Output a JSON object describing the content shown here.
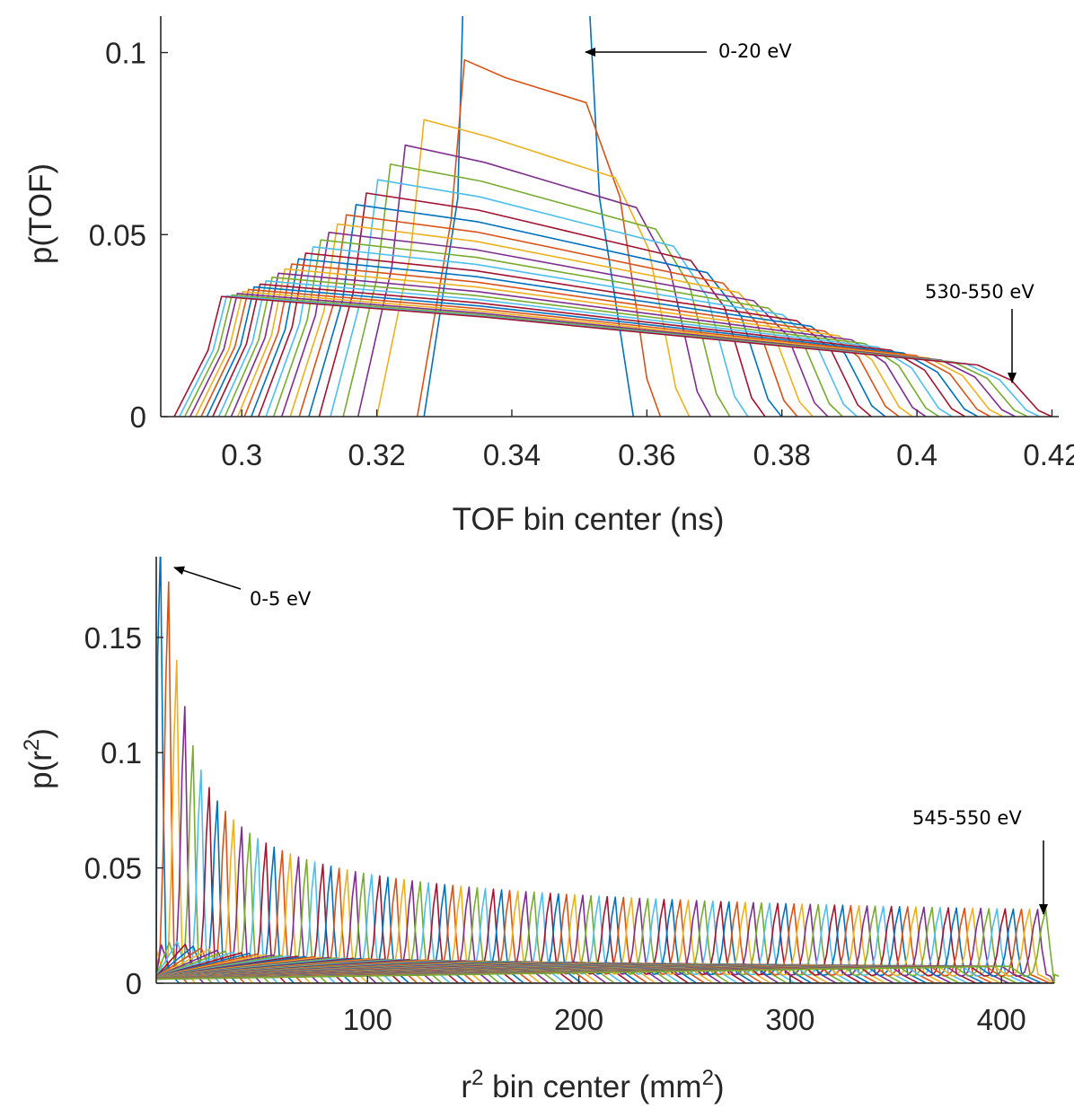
{
  "chart_data": [
    {
      "type": "line",
      "xlabel": "TOF bin center (ns)",
      "ylabel": "p(TOF)",
      "xlim": [
        0.288,
        0.421
      ],
      "ylim": [
        0,
        0.11
      ],
      "xticks": [
        "0.3",
        "0.32",
        "0.34",
        "0.36",
        "0.38",
        "0.4",
        "0.42"
      ],
      "yticks": [
        "0",
        "0.05",
        "0.1"
      ],
      "grid": false,
      "series_count": 28,
      "colors": [
        "#0072BD",
        "#D95319",
        "#EDB120",
        "#7E2F8E",
        "#77AC30",
        "#4DBEEE",
        "#A2142F"
      ],
      "annotations": [
        {
          "text": "0-20 eV",
          "points_to": [
            0.352,
            0.1
          ]
        },
        {
          "text": "530-550 eV",
          "points_to": [
            0.415,
            0.009
          ]
        }
      ],
      "series_envelope": {
        "first": {
          "name": "",
          "rise_start": 0.327,
          "rise_end": 0.332,
          "peak": 0.2,
          "fall_start": 0.35,
          "fall_end": 0.358
        },
        "second": {
          "name": "",
          "x": [
            0.326,
            0.328,
            0.333,
            0.334,
            0.345,
            0.349,
            0.352,
            0.356,
            0.358,
            0.36,
            0.362
          ],
          "y": [
            0,
            0.045,
            0.094,
            0.098,
            0.09,
            0.089,
            0.085,
            0.075,
            0.045,
            0.01,
            0
          ]
        },
        "last": {
          "name": "",
          "x": [
            0.29,
            0.295,
            0.3,
            0.34,
            0.38,
            0.412,
            0.416,
            0.419
          ],
          "y": [
            0,
            0.032,
            0.033,
            0.026,
            0.02,
            0.014,
            0.005,
            0
          ]
        }
      }
    },
    {
      "type": "line",
      "xlabel": "r",
      "xlabel_sup": "2",
      "xlabel_rest": " bin center (mm",
      "xlabel_unit_sup": "2",
      "xlabel_end": ")",
      "ylabel": "p(r",
      "ylabel_sup": "2",
      "ylabel_end": ")",
      "xlim": [
        0,
        425
      ],
      "ylim": [
        0,
        0.185
      ],
      "xticks": [
        "100",
        "200",
        "300",
        "400"
      ],
      "yticks": [
        "0",
        "0.05",
        "0.1",
        "0.15"
      ],
      "grid": false,
      "series_count": 110,
      "annotations": [
        {
          "text": "0-5 eV",
          "points_to": [
            6,
            0.18
          ]
        },
        {
          "text": "545-550 eV",
          "points_to": [
            420,
            0.022
          ]
        }
      ],
      "peak_positions": {
        "first": 2,
        "last": 421
      },
      "peak_heights": {
        "first": 0.19,
        "second": 0.174,
        "third": 0.14,
        "fourth": 0.12,
        "fifth": 0.103,
        "last": 0.022
      }
    }
  ]
}
